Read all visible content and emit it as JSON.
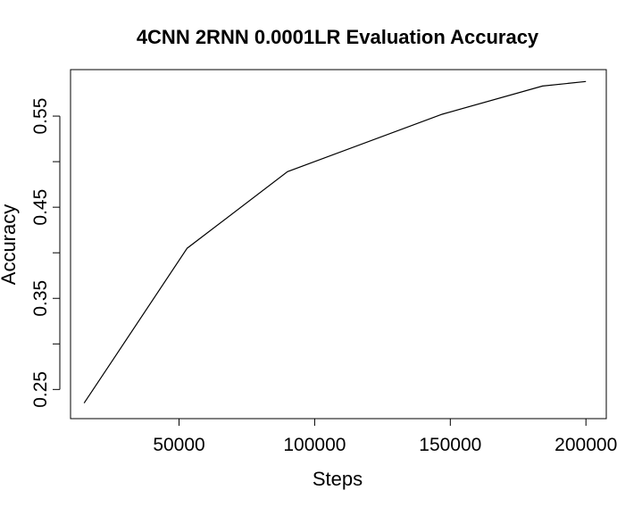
{
  "chart_data": {
    "type": "line",
    "title": "4CNN 2RNN 0.0001LR Evaluation Accuracy",
    "xlabel": "Steps",
    "ylabel": "Accuracy",
    "x": [
      15000,
      53000,
      90000,
      147000,
      184000,
      200000
    ],
    "series": [
      {
        "values": [
          0.235,
          0.405,
          0.489,
          0.552,
          0.583,
          0.588
        ],
        "color": "#000000"
      }
    ],
    "xlim": [
      10000,
      207500
    ],
    "ylim": [
      0.218,
      0.601
    ],
    "xticks": [
      50000,
      100000,
      150000,
      200000
    ],
    "xtick_labels": [
      "50000",
      "100000",
      "150000",
      "200000"
    ],
    "yticks": [
      0.25,
      0.3,
      0.35,
      0.4,
      0.45,
      0.5,
      0.55
    ],
    "yticks_labeled": [
      0.25,
      0.35,
      0.45,
      0.55
    ],
    "ytick_labels": [
      "0.25",
      "0.35",
      "0.45",
      "0.55"
    ],
    "grid": false,
    "box": true
  }
}
